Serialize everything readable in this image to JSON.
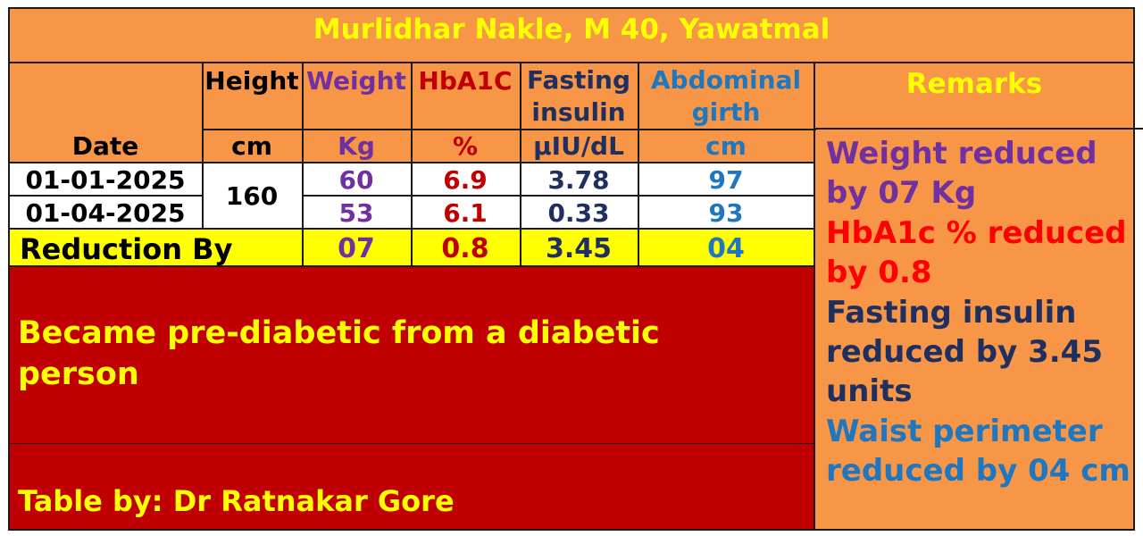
{
  "title": "Murlidhar Nakle, M 40, Yawatmal",
  "headers": {
    "date": "Date",
    "height": "Height",
    "weight": "Weight",
    "hba1c": "HbA1C",
    "fasting_line1": "Fasting",
    "fasting_line2": "insulin",
    "abdominal_line1": "Abdominal",
    "abdominal_line2": "girth",
    "remarks": "Remarks"
  },
  "units": {
    "height": "cm",
    "weight": "Kg",
    "hba1c": "%",
    "fasting": "µIU/dL",
    "abdominal": "cm"
  },
  "rows": [
    {
      "date": "01-01-2025",
      "weight": "60",
      "hba1c": "6.9",
      "fasting": "3.78",
      "abdominal": "97"
    },
    {
      "date": "01-04-2025",
      "weight": "53",
      "hba1c": "6.1",
      "fasting": "0.33",
      "abdominal": "93"
    }
  ],
  "height_value": "160",
  "reduction": {
    "label": "Reduction By",
    "weight": "07",
    "hba1c": "0.8",
    "fasting": "3.45",
    "abdominal": "04"
  },
  "conclusion": "Became pre-diabetic from a diabetic person",
  "credit": "Table by: Dr Ratnakar Gore",
  "remarks": {
    "weight": "Weight reduced by 07 Kg",
    "hba1c": "HbA1c % reduced by 0.8",
    "fasting": "Fasting insulin reduced by 3.45 units",
    "waist": "Waist perimeter reduced by 04 cm"
  },
  "colors": {
    "orange": "#f79646",
    "yellow": "#ffff00",
    "red": "#c00000",
    "purple": "#7030a0",
    "navy": "#1f2f5f",
    "blue": "#1f77c0"
  }
}
